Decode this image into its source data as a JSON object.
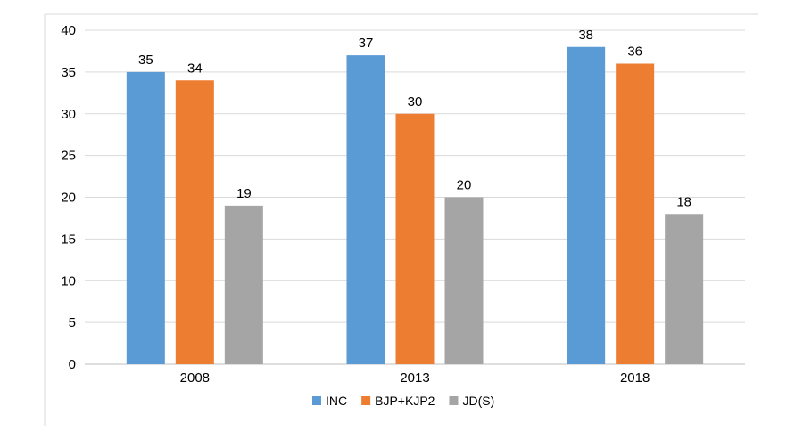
{
  "chart_data": {
    "type": "bar",
    "categories": [
      "2008",
      "2013",
      "2018"
    ],
    "series": [
      {
        "name": "INC",
        "values": [
          35,
          37,
          38
        ],
        "color": "#5B9BD5"
      },
      {
        "name": "BJP+KJP2",
        "values": [
          34,
          30,
          36
        ],
        "color": "#ED7D31"
      },
      {
        "name": "JD(S)",
        "values": [
          19,
          20,
          18
        ],
        "color": "#A5A5A5"
      }
    ],
    "yticks": [
      0,
      5,
      10,
      15,
      20,
      25,
      30,
      35,
      40
    ],
    "ylim": [
      0,
      40
    ],
    "grid": true,
    "data_labels": true,
    "legend_position": "bottom",
    "gridline_color": "#D9D9D9",
    "frame_color": "#D9D9D9"
  }
}
